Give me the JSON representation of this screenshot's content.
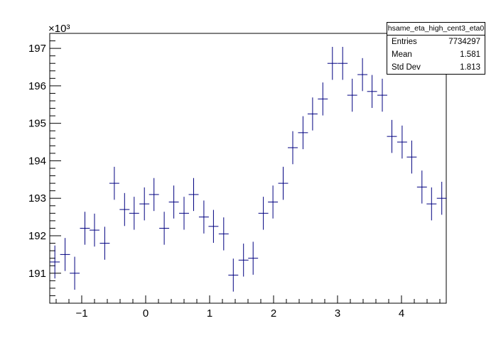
{
  "chart_data": {
    "type": "scatter",
    "style": "histogram-error-bars",
    "series_color": "#000080",
    "exponent_label": "×10³",
    "xlim": [
      -1.5,
      4.7
    ],
    "ylim": [
      190.2,
      197.4
    ],
    "x_ticks": [
      -1,
      0,
      1,
      2,
      3,
      4
    ],
    "y_ticks": [
      191,
      192,
      193,
      194,
      195,
      196,
      197
    ],
    "bin_half_width": 0.0775,
    "points": [
      {
        "x": -1.42,
        "y": 191.3,
        "err": 0.44
      },
      {
        "x": -1.26,
        "y": 191.5,
        "err": 0.44
      },
      {
        "x": -1.11,
        "y": 191.0,
        "err": 0.44
      },
      {
        "x": -0.95,
        "y": 192.2,
        "err": 0.44
      },
      {
        "x": -0.8,
        "y": 192.15,
        "err": 0.44
      },
      {
        "x": -0.64,
        "y": 191.8,
        "err": 0.44
      },
      {
        "x": -0.49,
        "y": 193.4,
        "err": 0.44
      },
      {
        "x": -0.33,
        "y": 192.7,
        "err": 0.44
      },
      {
        "x": -0.18,
        "y": 192.6,
        "err": 0.44
      },
      {
        "x": -0.02,
        "y": 192.85,
        "err": 0.44
      },
      {
        "x": 0.13,
        "y": 193.1,
        "err": 0.44
      },
      {
        "x": 0.29,
        "y": 192.2,
        "err": 0.44
      },
      {
        "x": 0.44,
        "y": 192.9,
        "err": 0.44
      },
      {
        "x": 0.6,
        "y": 192.6,
        "err": 0.44
      },
      {
        "x": 0.75,
        "y": 193.1,
        "err": 0.44
      },
      {
        "x": 0.91,
        "y": 192.5,
        "err": 0.44
      },
      {
        "x": 1.06,
        "y": 192.25,
        "err": 0.44
      },
      {
        "x": 1.22,
        "y": 192.05,
        "err": 0.44
      },
      {
        "x": 1.37,
        "y": 190.95,
        "err": 0.44
      },
      {
        "x": 1.53,
        "y": 191.35,
        "err": 0.44
      },
      {
        "x": 1.68,
        "y": 191.4,
        "err": 0.44
      },
      {
        "x": 1.84,
        "y": 192.6,
        "err": 0.44
      },
      {
        "x": 1.99,
        "y": 192.9,
        "err": 0.44
      },
      {
        "x": 2.15,
        "y": 193.4,
        "err": 0.44
      },
      {
        "x": 2.3,
        "y": 194.35,
        "err": 0.44
      },
      {
        "x": 2.46,
        "y": 194.75,
        "err": 0.44
      },
      {
        "x": 2.61,
        "y": 195.25,
        "err": 0.44
      },
      {
        "x": 2.77,
        "y": 195.65,
        "err": 0.44
      },
      {
        "x": 2.92,
        "y": 196.6,
        "err": 0.44
      },
      {
        "x": 3.08,
        "y": 196.6,
        "err": 0.44
      },
      {
        "x": 3.23,
        "y": 195.75,
        "err": 0.44
      },
      {
        "x": 3.39,
        "y": 196.3,
        "err": 0.44
      },
      {
        "x": 3.54,
        "y": 195.85,
        "err": 0.44
      },
      {
        "x": 3.7,
        "y": 195.75,
        "err": 0.44
      },
      {
        "x": 3.85,
        "y": 194.65,
        "err": 0.44
      },
      {
        "x": 4.01,
        "y": 194.5,
        "err": 0.44
      },
      {
        "x": 4.16,
        "y": 194.1,
        "err": 0.44
      },
      {
        "x": 4.32,
        "y": 193.3,
        "err": 0.44
      },
      {
        "x": 4.47,
        "y": 192.85,
        "err": 0.44
      },
      {
        "x": 4.63,
        "y": 193.0,
        "err": 0.44
      }
    ]
  },
  "stats": {
    "title": "hsame_eta_high_cent3_eta0",
    "rows": [
      {
        "label": "Entries",
        "value": "7734297"
      },
      {
        "label": "Mean",
        "value": "1.581"
      },
      {
        "label": "Std Dev",
        "value": "1.813"
      }
    ]
  }
}
